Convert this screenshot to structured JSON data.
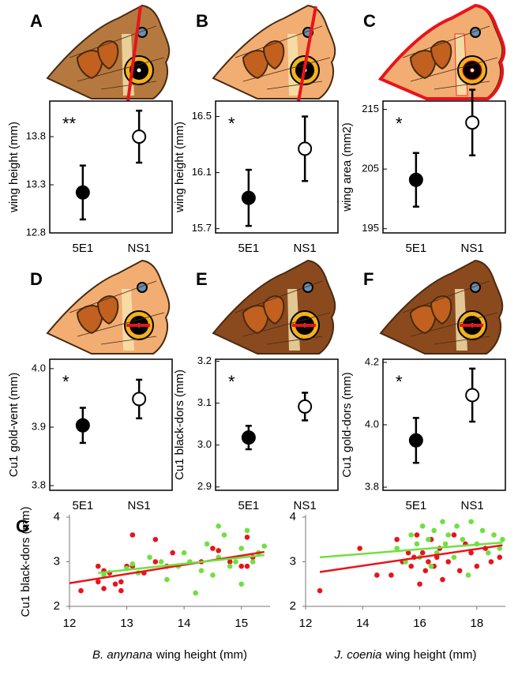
{
  "chart_data": [
    {
      "type": "errorbar",
      "label": "A",
      "ylabel": "wing height (mm)",
      "annotation": "**",
      "categories": [
        "5E1",
        "NS1"
      ],
      "values": [
        13.22,
        13.8
      ],
      "errors": [
        0.28,
        0.27
      ],
      "marker_fill": [
        "#000",
        "#fff"
      ],
      "ylim": [
        12.8,
        14.17
      ],
      "yticks": [
        12.8,
        13.3,
        13.8
      ]
    },
    {
      "type": "errorbar",
      "label": "B",
      "ylabel": "wing height (mm)",
      "annotation": "*",
      "categories": [
        "5E1",
        "NS1"
      ],
      "values": [
        15.92,
        16.27
      ],
      "errors": [
        0.2,
        0.23
      ],
      "marker_fill": [
        "#000",
        "#fff"
      ],
      "ylim": [
        15.67,
        16.61
      ],
      "yticks": [
        15.7,
        16.1,
        16.5
      ]
    },
    {
      "type": "errorbar",
      "label": "C",
      "ylabel": "wing area (mm2)",
      "annotation": "*",
      "categories": [
        "5E1",
        "NS1"
      ],
      "values": [
        203.2,
        212.8
      ],
      "errors": [
        4.5,
        5.5
      ],
      "marker_fill": [
        "#000",
        "#fff"
      ],
      "ylim": [
        194.3,
        216.4
      ],
      "yticks": [
        195,
        205,
        215
      ]
    },
    {
      "type": "errorbar",
      "label": "D",
      "ylabel": "Cu1 gold-vent (mm)",
      "annotation": "*",
      "categories": [
        "5E1",
        "NS1"
      ],
      "values": [
        3.903,
        3.948
      ],
      "errors": [
        0.03,
        0.033
      ],
      "marker_fill": [
        "#000",
        "#fff"
      ],
      "ylim": [
        3.792,
        4.016
      ],
      "yticks": [
        3.8,
        3.9,
        {
          "value": 4,
          "label": "4.0"
        }
      ]
    },
    {
      "type": "errorbar",
      "label": "E",
      "ylabel": "Cu1 black-dors (mm)",
      "annotation": "*",
      "categories": [
        "5E1",
        "NS1"
      ],
      "values": [
        3.018,
        3.092
      ],
      "errors": [
        0.028,
        0.033
      ],
      "marker_fill": [
        "#000",
        "#fff"
      ],
      "ylim": [
        2.892,
        3.205
      ],
      "yticks": [
        2.9,
        {
          "value": 3,
          "label": "3.0"
        },
        3.1,
        3.2
      ]
    },
    {
      "type": "errorbar",
      "label": "F",
      "ylabel": "Cu1 gold-dors (mm)",
      "annotation": "*",
      "categories": [
        "5E1",
        "NS1"
      ],
      "values": [
        3.95,
        4.095
      ],
      "errors": [
        0.072,
        0.085
      ],
      "marker_fill": [
        "#000",
        "#fff"
      ],
      "ylim": [
        3.79,
        4.21
      ],
      "yticks": [
        3.8,
        {
          "value": 4,
          "label": "4.0"
        },
        4.2
      ]
    },
    {
      "type": "scatter",
      "label": "G",
      "ylabel": "Cu1 black-dors (mm)",
      "xlabel_taxon": "B. anynana",
      "xlabel": "wing height (mm)",
      "xlim": [
        12,
        15.5
      ],
      "xticks": [
        12,
        13,
        14,
        15
      ],
      "ylim": [
        2,
        4
      ],
      "yticks": [
        2,
        3,
        4
      ],
      "series": [
        {
          "color": "#e8141b",
          "x": [
            12.2,
            12.5,
            12.5,
            12.6,
            12.6,
            12.7,
            12.8,
            12.9,
            12.9,
            13.0,
            13.1,
            13.1,
            13.3,
            13.5,
            13.5,
            13.7,
            13.8,
            14.3,
            14.5,
            14.6,
            14.8,
            15.0,
            15.1,
            15.1,
            15.2,
            15.3
          ],
          "values": [
            2.35,
            2.9,
            2.55,
            2.8,
            2.4,
            2.75,
            2.5,
            2.55,
            2.35,
            2.9,
            3.6,
            2.9,
            2.75,
            3.5,
            3.0,
            2.9,
            3.2,
            3.0,
            3.3,
            3.25,
            3.0,
            2.9,
            2.9,
            3.55,
            3.1,
            3.2
          ],
          "fit_x": [
            12,
            15.4
          ],
          "fit_y": [
            2.52,
            3.22
          ]
        },
        {
          "color": "#6fe040",
          "x": [
            12.6,
            13.0,
            13.1,
            13.2,
            13.4,
            13.6,
            13.7,
            13.9,
            14.0,
            14.1,
            14.2,
            14.3,
            14.4,
            14.5,
            14.6,
            14.6,
            14.7,
            14.8,
            14.9,
            15.0,
            15.0,
            15.1,
            15.2,
            15.3,
            15.4
          ],
          "values": [
            2.7,
            2.85,
            2.95,
            2.75,
            3.1,
            3.0,
            2.6,
            2.9,
            3.2,
            3.0,
            2.3,
            2.8,
            3.4,
            2.7,
            3.8,
            3.1,
            3.6,
            2.9,
            3.0,
            3.3,
            2.5,
            3.7,
            3.0,
            3.2,
            3.35
          ],
          "fit_x": [
            12.5,
            15.4
          ],
          "fit_y": [
            2.75,
            3.15
          ]
        }
      ]
    },
    {
      "type": "scatter",
      "xlabel_taxon": "J. coenia",
      "xlabel": "wing height (mm)",
      "xlim": [
        12,
        19
      ],
      "xticks": [
        12,
        14,
        16,
        18
      ],
      "ylim": [
        2,
        4
      ],
      "yticks": [
        2,
        3,
        4
      ],
      "series": [
        {
          "color": "#e8141b",
          "x": [
            12.5,
            13.9,
            14.5,
            15.0,
            15.2,
            15.4,
            15.6,
            15.7,
            15.8,
            15.9,
            16.0,
            16.1,
            16.2,
            16.3,
            16.4,
            16.5,
            16.6,
            16.7,
            16.8,
            17.0,
            17.2,
            17.4,
            17.6,
            17.8,
            18.0,
            18.3,
            18.5,
            18.8
          ],
          "values": [
            2.35,
            3.3,
            2.7,
            2.7,
            3.5,
            3.0,
            3.2,
            2.9,
            3.1,
            3.6,
            2.5,
            3.2,
            2.8,
            3.0,
            3.5,
            2.9,
            3.1,
            3.3,
            2.6,
            3.0,
            3.6,
            2.8,
            3.4,
            3.2,
            2.9,
            3.3,
            3.0,
            3.1
          ],
          "fit_x": [
            12.5,
            18.9
          ],
          "fit_y": [
            2.77,
            3.37
          ]
        },
        {
          "color": "#6fe040",
          "x": [
            15.2,
            15.5,
            15.7,
            15.9,
            16.0,
            16.1,
            16.3,
            16.4,
            16.5,
            16.6,
            16.8,
            16.9,
            17.0,
            17.2,
            17.3,
            17.5,
            17.7,
            17.8,
            18.0,
            18.2,
            18.4,
            18.6,
            18.8,
            18.9
          ],
          "values": [
            3.3,
            3.0,
            3.6,
            3.4,
            3.1,
            3.8,
            3.5,
            2.9,
            3.7,
            3.2,
            3.9,
            3.4,
            3.6,
            3.1,
            3.8,
            3.5,
            2.7,
            3.9,
            3.4,
            3.7,
            3.2,
            3.6,
            3.3,
            3.5
          ],
          "fit_x": [
            12.5,
            18.9
          ],
          "fit_y": [
            3.1,
            3.43
          ]
        }
      ]
    }
  ]
}
